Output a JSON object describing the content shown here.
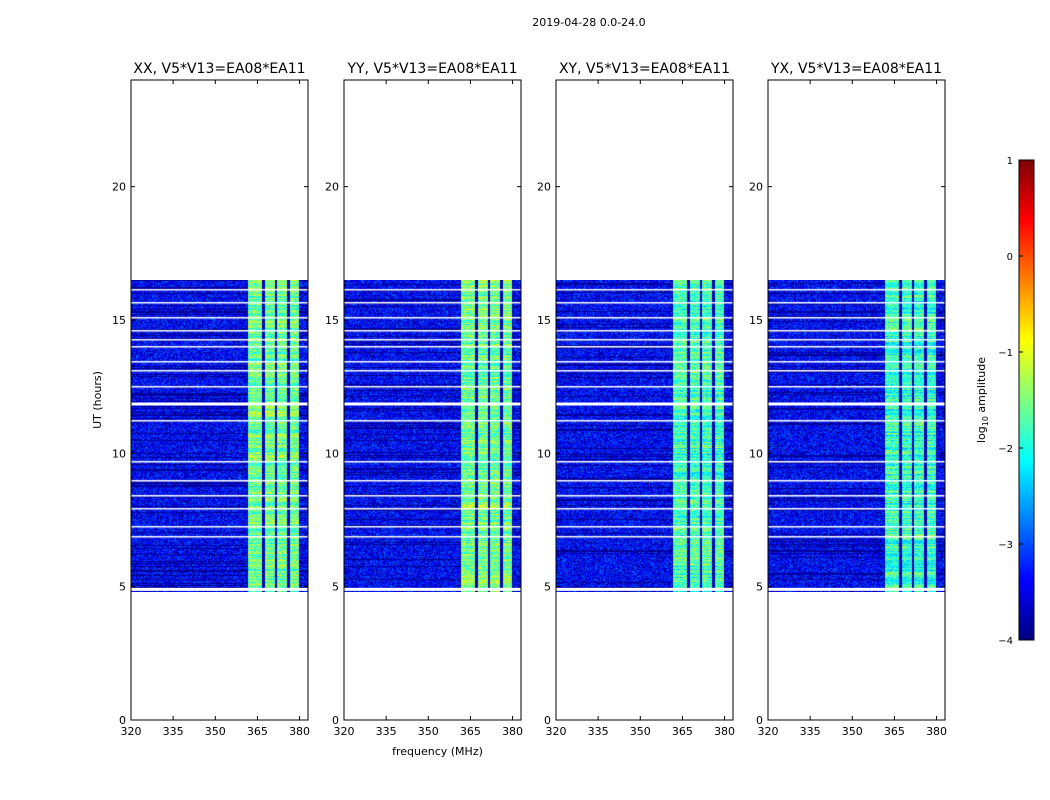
{
  "suptitle": "2019-04-28 0.0-24.0",
  "colormap": [
    "#00007f",
    "#0000ff",
    "#007fff",
    "#00ffff",
    "#7fff7f",
    "#ffff00",
    "#ff7f00",
    "#ff0000",
    "#7f0000"
  ],
  "chart_data": [
    {
      "type": "heatmap",
      "title": "XX, V5*V13=EA08*EA11",
      "xlabel": "",
      "ylabel": "UT (hours)",
      "x_ticks": [
        320,
        335,
        350,
        365,
        380
      ],
      "y_ticks": [
        0,
        5,
        10,
        15,
        20
      ],
      "xlim": [
        320,
        383
      ],
      "ylim": [
        0,
        24
      ],
      "data_coverage_hours": [
        4.8,
        16.5
      ],
      "signal_band_mhz": [
        361,
        380
      ],
      "signal_level_log10": -1.6,
      "background_level_log10": -3.4,
      "gap_hours": [
        4.9,
        11.85
      ]
    },
    {
      "type": "heatmap",
      "title": "YY, V5*V13=EA08*EA11",
      "xlabel": "frequency (MHz)",
      "ylabel": "",
      "x_ticks": [
        320,
        335,
        350,
        365,
        380
      ],
      "y_ticks": [
        0,
        5,
        10,
        15,
        20
      ],
      "xlim": [
        320,
        383
      ],
      "ylim": [
        0,
        24
      ],
      "data_coverage_hours": [
        4.8,
        16.5
      ],
      "signal_band_mhz": [
        361,
        380
      ],
      "signal_level_log10": -1.6,
      "background_level_log10": -3.4,
      "gap_hours": [
        4.9,
        11.85
      ]
    },
    {
      "type": "heatmap",
      "title": "XY, V5*V13=EA08*EA11",
      "xlabel": "",
      "ylabel": "",
      "x_ticks": [
        320,
        335,
        350,
        365,
        380
      ],
      "y_ticks": [
        0,
        5,
        10,
        15,
        20
      ],
      "xlim": [
        320,
        383
      ],
      "ylim": [
        0,
        24
      ],
      "data_coverage_hours": [
        4.8,
        16.5
      ],
      "signal_band_mhz": [
        361,
        380
      ],
      "signal_level_log10": -1.8,
      "background_level_log10": -3.4,
      "gap_hours": [
        4.9,
        11.85
      ]
    },
    {
      "type": "heatmap",
      "title": "YX, V5*V13=EA08*EA11",
      "xlabel": "",
      "ylabel": "",
      "x_ticks": [
        320,
        335,
        350,
        365,
        380
      ],
      "y_ticks": [
        0,
        5,
        10,
        15,
        20
      ],
      "xlim": [
        320,
        383
      ],
      "ylim": [
        0,
        24
      ],
      "data_coverage_hours": [
        4.8,
        16.5
      ],
      "signal_band_mhz": [
        361,
        380
      ],
      "signal_level_log10": -1.9,
      "background_level_log10": -3.4,
      "gap_hours": [
        4.9,
        11.85
      ]
    }
  ],
  "colorbar": {
    "label": "log10 amplitude",
    "label_main": "log",
    "label_sub": "10",
    "label_rest": " amplitude",
    "range": [
      -4,
      1
    ],
    "ticks": [
      "1",
      "0",
      "−1",
      "−2",
      "−3",
      "−4"
    ],
    "tick_values": [
      1,
      0,
      -1,
      -2,
      -3,
      -4
    ]
  }
}
